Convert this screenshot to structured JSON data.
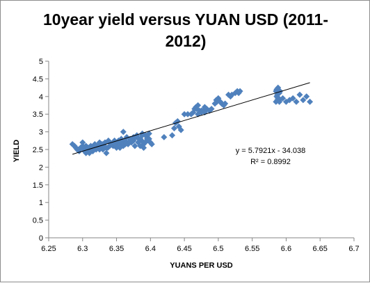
{
  "chart_data": {
    "type": "scatter",
    "title_line1": "10year yield versus YUAN USD (2011-",
    "title_line2": "2012)",
    "xlabel": "YUANS PER USD",
    "ylabel": "YIELD",
    "xlim": [
      6.25,
      6.7
    ],
    "ylim": [
      0,
      5
    ],
    "x_ticks": [
      "6.25",
      "6.3",
      "6.35",
      "6.4",
      "6.45",
      "6.5",
      "6.55",
      "6.6",
      "6.65",
      "6.7"
    ],
    "y_ticks": [
      "0",
      "0.5",
      "1",
      "1.5",
      "2",
      "2.5",
      "3",
      "3.5",
      "4",
      "4.5",
      "5"
    ],
    "grid": false,
    "legend": "none",
    "marker_color": "#4f81bd",
    "trendline": {
      "slope": 5.7921,
      "intercept": -34.038,
      "x_range": [
        6.285,
        6.635
      ],
      "color": "#000000",
      "equation": "y = 5.7921x - 34.038",
      "r2": "R² = 0.8992"
    },
    "series": [
      {
        "x": [
          6.285,
          6.288,
          6.29,
          6.292,
          6.295,
          6.297,
          6.3,
          6.302,
          6.305,
          6.307,
          6.31,
          6.312,
          6.315,
          6.318,
          6.32,
          6.322,
          6.325,
          6.327,
          6.33,
          6.332,
          6.335,
          6.337,
          6.34,
          6.342,
          6.345,
          6.347,
          6.35,
          6.352,
          6.355,
          6.357,
          6.36,
          6.362,
          6.365,
          6.367,
          6.37,
          6.372,
          6.375,
          6.377,
          6.38,
          6.382,
          6.385,
          6.387,
          6.39,
          6.392,
          6.395,
          6.397,
          6.4,
          6.402,
          6.3,
          6.305,
          6.31,
          6.315,
          6.32,
          6.325,
          6.33,
          6.335,
          6.34,
          6.345,
          6.35,
          6.355,
          6.36,
          6.365,
          6.37,
          6.375,
          6.38,
          6.385,
          6.39,
          6.395,
          6.293,
          6.298,
          6.303,
          6.308,
          6.313,
          6.318,
          6.323,
          6.328,
          6.333,
          6.338,
          6.343,
          6.348,
          6.353,
          6.358,
          6.363,
          6.368,
          6.373,
          6.378,
          6.383,
          6.388,
          6.393,
          6.398,
          6.31,
          6.33,
          6.36,
          6.388,
          6.395,
          6.398,
          6.42,
          6.432,
          6.435,
          6.437,
          6.44,
          6.442,
          6.445,
          6.45,
          6.455,
          6.46,
          6.463,
          6.465,
          6.467,
          6.47,
          6.472,
          6.475,
          6.477,
          6.48,
          6.483,
          6.487,
          6.49,
          6.495,
          6.497,
          6.5,
          6.503,
          6.505,
          6.508,
          6.51,
          6.515,
          6.518,
          6.52,
          6.525,
          6.528,
          6.53,
          6.532,
          6.468,
          6.47,
          6.475,
          6.48,
          6.498,
          6.5,
          6.585,
          6.586,
          6.587,
          6.588,
          6.589,
          6.59,
          6.591,
          6.585,
          6.587,
          6.59,
          6.595,
          6.6,
          6.605,
          6.61,
          6.615,
          6.62,
          6.625,
          6.63,
          6.635,
          6.586,
          6.588,
          6.59
        ],
        "y": [
          2.65,
          2.6,
          2.55,
          2.5,
          2.45,
          2.55,
          2.6,
          2.5,
          2.4,
          2.55,
          2.45,
          2.6,
          2.55,
          2.65,
          2.5,
          2.6,
          2.7,
          2.55,
          2.65,
          2.6,
          2.4,
          2.55,
          2.7,
          2.65,
          2.6,
          2.75,
          2.55,
          2.7,
          2.65,
          2.8,
          2.6,
          2.75,
          2.7,
          2.65,
          2.8,
          2.7,
          2.75,
          2.6,
          2.85,
          2.7,
          2.8,
          2.75,
          2.65,
          2.7,
          2.8,
          2.75,
          2.7,
          2.65,
          2.7,
          2.6,
          2.5,
          2.45,
          2.55,
          2.5,
          2.6,
          2.55,
          2.6,
          2.7,
          2.6,
          2.55,
          2.65,
          2.85,
          2.75,
          2.85,
          2.9,
          2.6,
          2.55,
          2.85,
          2.5,
          2.55,
          2.45,
          2.55,
          2.5,
          2.6,
          2.55,
          2.65,
          2.7,
          2.75,
          2.65,
          2.7,
          2.75,
          2.7,
          2.65,
          2.7,
          2.75,
          2.85,
          2.8,
          2.9,
          2.9,
          2.95,
          2.4,
          2.5,
          3.0,
          2.95,
          2.75,
          2.8,
          2.85,
          2.9,
          3.1,
          3.25,
          3.3,
          3.15,
          3.05,
          3.5,
          3.5,
          3.5,
          3.55,
          3.65,
          3.7,
          3.5,
          3.6,
          3.55,
          3.6,
          3.55,
          3.65,
          3.6,
          3.65,
          3.8,
          3.9,
          3.95,
          3.85,
          3.8,
          3.75,
          3.8,
          4.05,
          4.0,
          4.05,
          4.1,
          4.15,
          4.1,
          4.15,
          3.65,
          3.75,
          3.6,
          3.7,
          3.85,
          3.9,
          4.15,
          4.2,
          4.05,
          4.25,
          3.95,
          4.1,
          4.15,
          3.85,
          3.9,
          3.85,
          3.95,
          3.85,
          3.9,
          3.95,
          3.85,
          4.05,
          3.9,
          4.0,
          3.85,
          4.0,
          3.95,
          3.9
        ]
      }
    ]
  }
}
